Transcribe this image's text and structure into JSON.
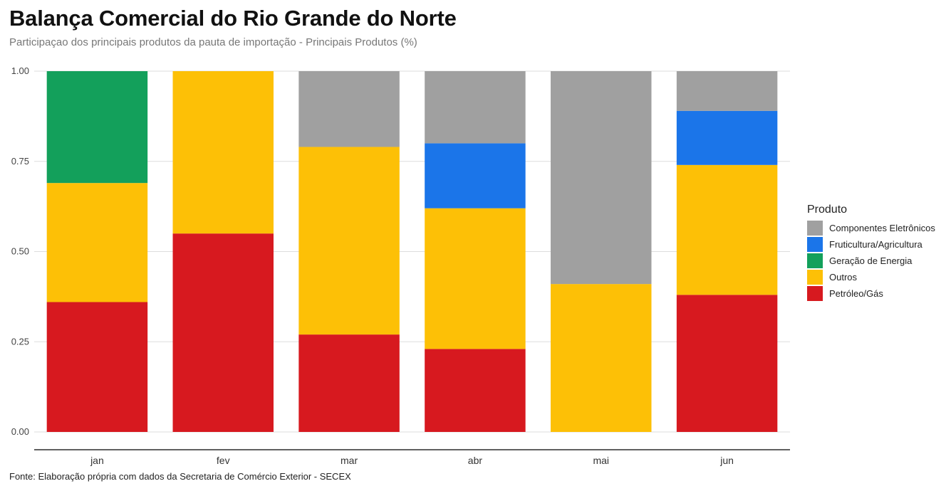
{
  "title": "Balança Comercial do Rio Grande do Norte",
  "subtitle": "Participaçao dos principais produtos da pauta de importação - Principais Produtos (%)",
  "caption": "Fonte: Elaboração própria com dados da Secretaria de Comércio Exterior - SECEX",
  "chart_data": {
    "type": "bar",
    "stacked": true,
    "categories": [
      "jan",
      "fev",
      "mar",
      "abr",
      "mai",
      "jun"
    ],
    "ylim": [
      0,
      1
    ],
    "yticks": [
      "0.00",
      "0.25",
      "0.50",
      "0.75",
      "1.00"
    ],
    "grid": "horizontal",
    "legend": {
      "title": "Produto",
      "position": "right",
      "order": [
        "Componentes Eletrônicos",
        "Fruticultura/Agricultura",
        "Geração de Energia",
        "Outros",
        "Petróleo/Gás"
      ]
    },
    "series": [
      {
        "name": "Petróleo/Gás",
        "color": "#D7191F",
        "values": [
          0.36,
          0.55,
          0.27,
          0.23,
          0.0,
          0.38
        ]
      },
      {
        "name": "Outros",
        "color": "#FDC006",
        "values": [
          0.33,
          0.45,
          0.52,
          0.39,
          0.41,
          0.36
        ]
      },
      {
        "name": "Geração de Energia",
        "color": "#13A05B",
        "values": [
          0.31,
          0.0,
          0.0,
          0.0,
          0.0,
          0.0
        ]
      },
      {
        "name": "Fruticultura/Agricultura",
        "color": "#1B75E9",
        "values": [
          0.0,
          0.0,
          0.0,
          0.18,
          0.0,
          0.15
        ]
      },
      {
        "name": "Componentes Eletrônicos",
        "color": "#A0A0A0",
        "values": [
          0.0,
          0.0,
          0.21,
          0.2,
          0.59,
          0.11
        ]
      }
    ]
  }
}
